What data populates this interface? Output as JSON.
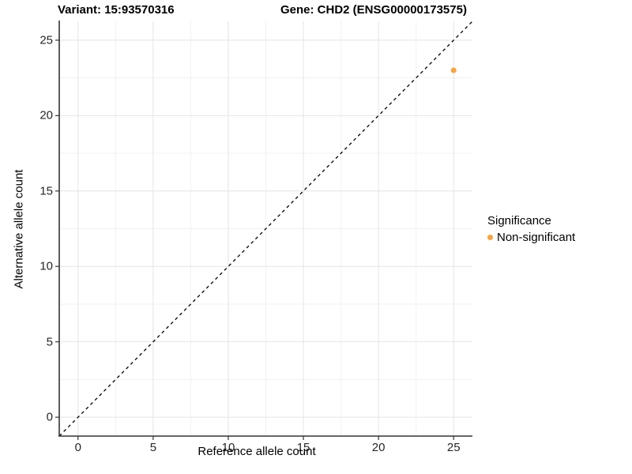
{
  "chart_data": {
    "type": "scatter",
    "title_left": "Variant: 15:93570316",
    "title_right": "Gene: CHD2 (ENSG00000173575)",
    "xlabel": "Reference allele count",
    "ylabel": "Alternative allele count",
    "xlim": [
      -1.25,
      26.25
    ],
    "ylim": [
      -1.25,
      26.25
    ],
    "x_ticks": [
      0,
      5,
      10,
      15,
      20,
      25
    ],
    "y_ticks": [
      0,
      5,
      10,
      15,
      20,
      25
    ],
    "minor_ticks": [
      2.5,
      7.5,
      12.5,
      17.5,
      22.5
    ],
    "grid": true,
    "points": [
      {
        "x": 25,
        "y": 23,
        "series": "Non-significant",
        "color": "#F9A43B"
      }
    ],
    "identity_line": {
      "style": "dashed",
      "color": "#000000",
      "from": [
        -1.25,
        -1.25
      ],
      "to": [
        26.25,
        26.25
      ]
    },
    "legend": {
      "title": "Significance",
      "position": "right",
      "items": [
        {
          "label": "Non-significant",
          "color": "#F9A43B"
        }
      ]
    },
    "colors": {
      "background": "#FFFFFF",
      "grid_major": "#E4E4E4",
      "grid_minor": "#F1F1F1",
      "axis_line": "#333333",
      "tick_text": "#262626"
    }
  }
}
